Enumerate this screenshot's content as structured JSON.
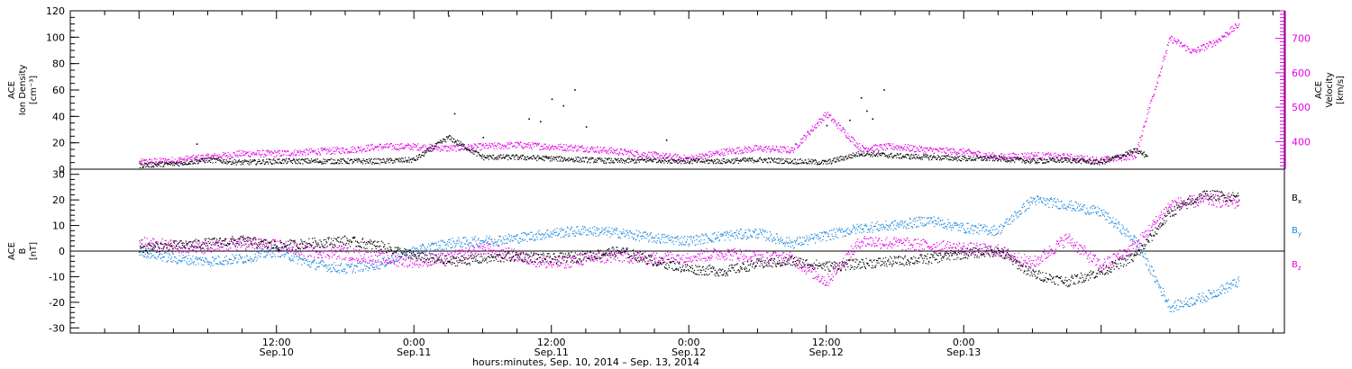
{
  "chart_data": [
    {
      "panel": "top",
      "type": "scatter",
      "ylabel_left": [
        "ACE",
        "Ion Density",
        "[cm⁻³]"
      ],
      "ylabel_right": [
        "ACE",
        "Velocity",
        "[km/s]"
      ],
      "ylim_left": [
        0,
        120
      ],
      "ylim_right": [
        320,
        780
      ],
      "yticks_left": [
        "0",
        "20",
        "40",
        "60",
        "80",
        "100",
        "120"
      ],
      "yticks_right": [
        "400",
        "500",
        "600",
        "700"
      ],
      "colors": {
        "density": "#000000",
        "velocity": "#e600e6"
      },
      "series": [
        {
          "name": "Ion Density",
          "axis": "left",
          "color": "#000000",
          "x": [
            0,
            3,
            6,
            9,
            12,
            15,
            18,
            21,
            24,
            27,
            30,
            33,
            36,
            39,
            42,
            45,
            48,
            51,
            54,
            57,
            60,
            63,
            66,
            69,
            72,
            75,
            78,
            81,
            84,
            87,
            88
          ],
          "y": [
            3,
            4,
            7,
            5,
            6,
            6,
            6,
            6,
            7,
            24,
            9,
            9,
            8,
            7,
            6,
            7,
            6,
            6,
            7,
            6,
            5,
            12,
            10,
            9,
            8,
            8,
            6,
            7,
            5,
            14,
            10
          ]
        },
        {
          "name": "Velocity",
          "axis": "right",
          "color": "#e600e6",
          "x": [
            0,
            3,
            6,
            9,
            12,
            15,
            18,
            21,
            24,
            27,
            30,
            33,
            36,
            39,
            42,
            45,
            48,
            51,
            54,
            57,
            60,
            63,
            66,
            69,
            72,
            75,
            78,
            81,
            84,
            87,
            88,
            90,
            92,
            94,
            96
          ],
          "y": [
            340,
            345,
            355,
            365,
            365,
            370,
            375,
            385,
            385,
            380,
            385,
            390,
            385,
            380,
            370,
            360,
            350,
            370,
            380,
            375,
            480,
            380,
            385,
            375,
            370,
            355,
            360,
            355,
            345,
            360,
            480,
            700,
            660,
            690,
            740
          ]
        }
      ],
      "outliers_density": [
        [
          5,
          19
        ],
        [
          27,
          116
        ],
        [
          27.5,
          42
        ],
        [
          30,
          24
        ],
        [
          34,
          38
        ],
        [
          35,
          36
        ],
        [
          36,
          53
        ],
        [
          37,
          48
        ],
        [
          38,
          60
        ],
        [
          39,
          32
        ],
        [
          46,
          22
        ],
        [
          60,
          33
        ],
        [
          62,
          37
        ],
        [
          63,
          54
        ],
        [
          63.5,
          44
        ],
        [
          65,
          60
        ],
        [
          64,
          38
        ]
      ]
    },
    {
      "panel": "bottom",
      "type": "scatter",
      "ylabel_left": [
        "ACE",
        "B",
        "[nT]"
      ],
      "ylim_left": [
        -32,
        32
      ],
      "yticks_left": [
        "-30",
        "-20",
        "-10",
        "0",
        "10",
        "20",
        "30"
      ],
      "colors": {
        "Bx": "#000000",
        "By": "#1f88dd",
        "Bz": "#e600e6"
      },
      "series": [
        {
          "name": "Bx",
          "color": "#000000",
          "x": [
            0,
            3,
            6,
            9,
            12,
            15,
            18,
            21,
            24,
            27,
            30,
            33,
            36,
            39,
            42,
            45,
            48,
            51,
            54,
            57,
            60,
            63,
            66,
            69,
            72,
            75,
            78,
            81,
            84,
            87,
            90,
            93,
            96
          ],
          "y": [
            1,
            2,
            3,
            4,
            2,
            3,
            4,
            2,
            -2,
            -4,
            -3,
            -2,
            -3,
            -2,
            0,
            -4,
            -7,
            -8,
            -5,
            -4,
            -6,
            -5,
            -4,
            -3,
            -1,
            0,
            -9,
            -12,
            -8,
            -2,
            15,
            22,
            21
          ]
        },
        {
          "name": "By",
          "color": "#1f88dd",
          "x": [
            0,
            3,
            6,
            9,
            12,
            15,
            18,
            21,
            24,
            27,
            30,
            33,
            36,
            39,
            42,
            45,
            48,
            51,
            54,
            57,
            60,
            63,
            66,
            69,
            72,
            75,
            78,
            81,
            84,
            87,
            90,
            93,
            96
          ],
          "y": [
            0,
            -3,
            -4,
            -3,
            0,
            -5,
            -7,
            -5,
            0,
            3,
            4,
            5,
            7,
            8,
            7,
            5,
            4,
            6,
            7,
            3,
            6,
            9,
            10,
            12,
            9,
            8,
            20,
            18,
            15,
            4,
            -22,
            -18,
            -12
          ]
        },
        {
          "name": "Bz",
          "color": "#e600e6",
          "x": [
            0,
            3,
            6,
            9,
            12,
            15,
            18,
            21,
            24,
            27,
            30,
            33,
            36,
            39,
            42,
            45,
            48,
            51,
            54,
            57,
            60,
            63,
            66,
            69,
            72,
            75,
            78,
            81,
            84,
            87,
            90,
            93,
            96
          ],
          "y": [
            3,
            2,
            1,
            3,
            2,
            0,
            -1,
            -3,
            -4,
            -3,
            1,
            -2,
            -5,
            -3,
            -2,
            -3,
            -2,
            -1,
            -2,
            -3,
            -12,
            4,
            3,
            2,
            1,
            0,
            -5,
            5,
            -6,
            2,
            18,
            20,
            19
          ]
        }
      ],
      "legend": [
        "B",
        "B",
        "B"
      ],
      "legend_subscripts": [
        "x",
        "y",
        "z"
      ],
      "legend_placement": "right"
    }
  ],
  "xaxis": {
    "range_hours": [
      -6,
      100
    ],
    "ticks": [
      {
        "hour": 12,
        "label": "12:00",
        "sub": "Sep.10"
      },
      {
        "hour": 24,
        "label": "0:00",
        "sub": "Sep.11"
      },
      {
        "hour": 36,
        "label": "12:00",
        "sub": "Sep.11"
      },
      {
        "hour": 48,
        "label": "0:00",
        "sub": "Sep.12"
      },
      {
        "hour": 60,
        "label": "12:00",
        "sub": "Sep.12"
      },
      {
        "hour": 72,
        "label": "0:00",
        "sub": "Sep.13"
      }
    ],
    "title": "hours:minutes, Sep. 10, 2014 – Sep. 13, 2014"
  }
}
